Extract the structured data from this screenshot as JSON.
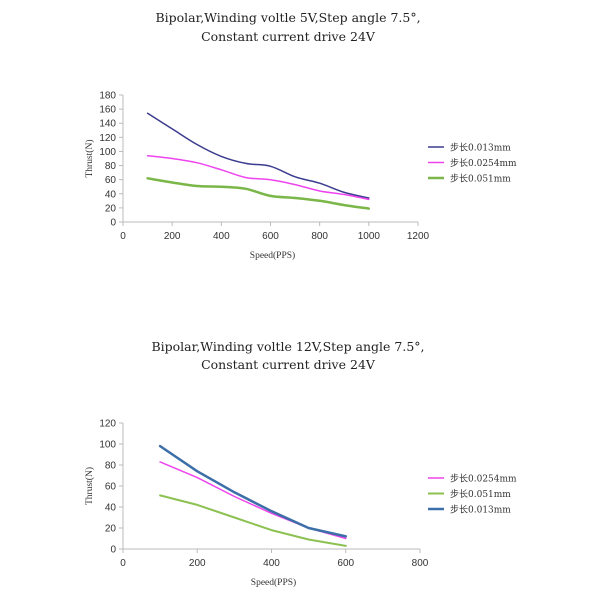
{
  "chart_data": [
    {
      "type": "line",
      "title_lines": [
        "Bipolar,Winding voltle 5V,Step angle 7.5°,",
        "Constant current drive 24V"
      ],
      "xlabel": "Speed(PPS)",
      "ylabel": "Thrust(N)",
      "xlim": [
        0,
        1200
      ],
      "ylim": [
        0,
        180
      ],
      "xticks": [
        0,
        200,
        400,
        600,
        800,
        1000,
        1200
      ],
      "yticks": [
        0,
        20,
        40,
        60,
        80,
        100,
        120,
        140,
        160,
        180
      ],
      "legend_position": "right",
      "series": [
        {
          "name": "步长0.013mm",
          "color": "#3b3b8f",
          "line_width": 1.5,
          "points": [
            [
              100,
              154
            ],
            [
              200,
              132
            ],
            [
              300,
              110
            ],
            [
              400,
              93
            ],
            [
              500,
              83
            ],
            [
              600,
              79
            ],
            [
              700,
              64
            ],
            [
              800,
              55
            ],
            [
              900,
              42
            ],
            [
              1000,
              34
            ]
          ]
        },
        {
          "name": "步长0.0254mm",
          "color": "#ee44ee",
          "line_width": 1.5,
          "points": [
            [
              100,
              94
            ],
            [
              200,
              90
            ],
            [
              300,
              84
            ],
            [
              400,
              74
            ],
            [
              500,
              63
            ],
            [
              600,
              60
            ],
            [
              700,
              53
            ],
            [
              800,
              44
            ],
            [
              900,
              39
            ],
            [
              1000,
              32
            ]
          ]
        },
        {
          "name": "步长0.051mm",
          "color": "#7ab648",
          "line_width": 2.5,
          "points": [
            [
              100,
              62
            ],
            [
              200,
              56
            ],
            [
              300,
              51
            ],
            [
              400,
              50
            ],
            [
              500,
              47
            ],
            [
              600,
              37
            ],
            [
              700,
              34
            ],
            [
              800,
              30
            ],
            [
              900,
              24
            ],
            [
              1000,
              19
            ]
          ]
        }
      ]
    },
    {
      "type": "line",
      "title_lines": [
        "Bipolar,Winding voltle 12V,Step angle 7.5°,",
        "Constant current drive 24V"
      ],
      "xlabel": "Speed(PPS)",
      "ylabel": "Thrust(N)",
      "xlim": [
        0,
        800
      ],
      "ylim": [
        0,
        120
      ],
      "xticks": [
        0,
        200,
        400,
        600,
        800
      ],
      "yticks": [
        0,
        20,
        40,
        60,
        80,
        100,
        120
      ],
      "legend_position": "right",
      "series": [
        {
          "name": "步长0.0254mm",
          "color": "#ee44ee",
          "line_width": 1.5,
          "points": [
            [
              100,
              83
            ],
            [
              200,
              68
            ],
            [
              300,
              50
            ],
            [
              400,
              34
            ],
            [
              500,
              20
            ],
            [
              600,
              10
            ]
          ]
        },
        {
          "name": "步长0.051mm",
          "color": "#8cc152",
          "line_width": 2,
          "points": [
            [
              100,
              51
            ],
            [
              200,
              42
            ],
            [
              300,
              30
            ],
            [
              400,
              18
            ],
            [
              500,
              9
            ],
            [
              600,
              3
            ]
          ]
        },
        {
          "name": "步长0.013mm",
          "color": "#3c6fa8",
          "line_width": 2.5,
          "points": [
            [
              100,
              98
            ],
            [
              200,
              74
            ],
            [
              300,
              54
            ],
            [
              400,
              36
            ],
            [
              500,
              20
            ],
            [
              600,
              12
            ]
          ]
        }
      ]
    }
  ]
}
